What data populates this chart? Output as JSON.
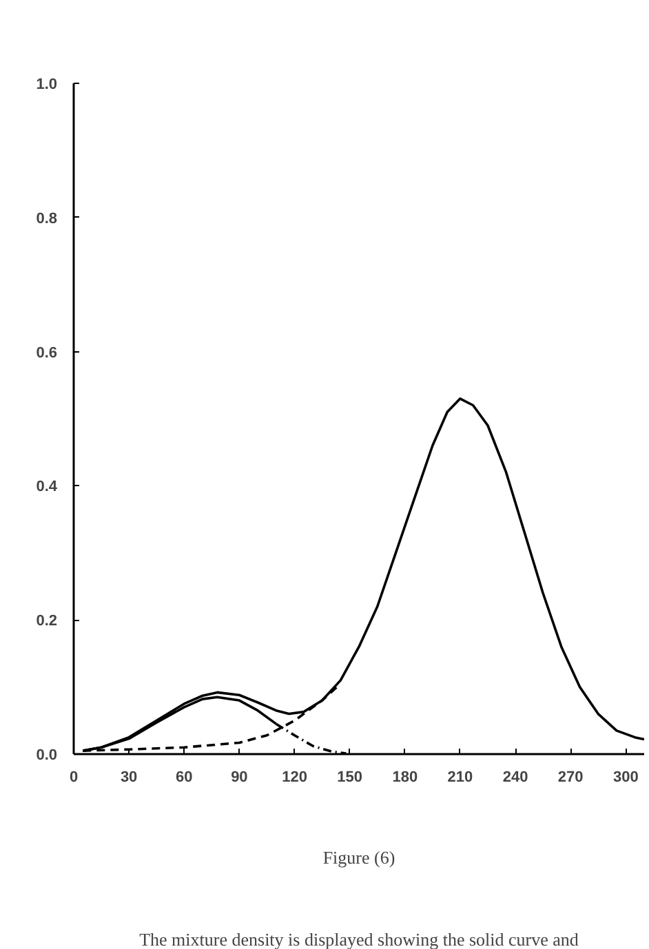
{
  "chart_data": {
    "type": "line",
    "title": "Figure (6)",
    "annotations": [
      "The mixture density is displayed showing the solid curve and"
    ],
    "xlim": [
      0,
      310
    ],
    "ylim": [
      0,
      1.0
    ],
    "xticks": [
      0,
      30,
      60,
      90,
      120,
      150,
      180,
      210,
      240,
      270,
      300
    ],
    "yticks": [
      {
        "value": 0,
        "label": "0.0"
      },
      {
        "value": 0.2,
        "label": "0.2"
      },
      {
        "value": 0.4,
        "label": "0.4"
      },
      {
        "value": 0.6,
        "label": "0.6"
      },
      {
        "value": 0.8,
        "label": "0.8"
      },
      {
        "value": 1.0,
        "label": "1.0"
      }
    ],
    "grid": false,
    "marker": "none",
    "series": [
      {
        "color": "#000000",
        "line_style": "solid",
        "x": [
          5,
          15,
          30,
          45,
          60,
          70,
          78,
          90,
          100,
          110,
          117,
          125,
          135,
          145,
          155,
          165,
          175,
          185,
          195,
          203,
          210,
          217,
          225,
          235,
          245,
          255,
          265,
          275,
          285,
          295,
          305,
          310
        ],
        "values": [
          0.005,
          0.01,
          0.025,
          0.05,
          0.075,
          0.087,
          0.092,
          0.088,
          0.077,
          0.065,
          0.06,
          0.063,
          0.08,
          0.11,
          0.16,
          0.22,
          0.3,
          0.38,
          0.46,
          0.51,
          0.53,
          0.52,
          0.49,
          0.42,
          0.33,
          0.24,
          0.16,
          0.1,
          0.06,
          0.035,
          0.025,
          0.022
        ]
      },
      {
        "color": "#000000",
        "line_style": "solid",
        "x": [
          5,
          15,
          30,
          45,
          60,
          70,
          78,
          90,
          100,
          110
        ],
        "values": [
          0.005,
          0.01,
          0.023,
          0.047,
          0.07,
          0.082,
          0.085,
          0.08,
          0.065,
          0.045
        ]
      },
      {
        "color": "#000000",
        "line_style": "dotted",
        "x": [
          110,
          120,
          130,
          140,
          148
        ],
        "values": [
          0.045,
          0.028,
          0.012,
          0.004,
          0.001
        ]
      },
      {
        "color": "#000000",
        "line_style": "dashed",
        "x": [
          5,
          30,
          60,
          90,
          105,
          120,
          135,
          145
        ],
        "values": [
          0.005,
          0.007,
          0.01,
          0.017,
          0.028,
          0.05,
          0.08,
          0.105
        ]
      }
    ]
  }
}
